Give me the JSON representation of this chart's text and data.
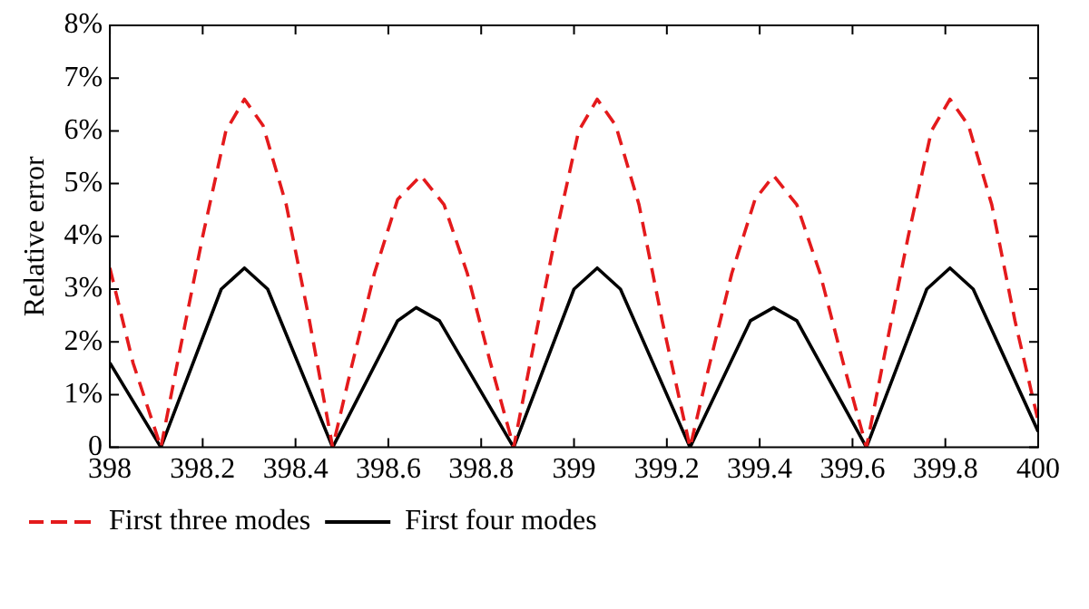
{
  "chart_data": {
    "type": "line",
    "ylabel": "Relative error",
    "xlim": [
      398,
      400
    ],
    "xticks": [
      398,
      398.2,
      398.4,
      398.6,
      398.8,
      399,
      399.2,
      399.4,
      399.6,
      399.8,
      400
    ],
    "ylim": [
      0,
      8
    ],
    "yticks": [
      0,
      {
        "value": 1,
        "label": "1%"
      },
      {
        "value": 2,
        "label": "2%"
      },
      {
        "value": 3,
        "label": "3%"
      },
      {
        "value": 4,
        "label": "4%"
      },
      {
        "value": 5,
        "label": "5%"
      },
      {
        "value": 6,
        "label": "6%"
      },
      {
        "value": 7,
        "label": "7%"
      },
      {
        "value": 8,
        "label": "8%"
      }
    ],
    "grid": false,
    "legend": "bottom",
    "marker": "none",
    "series": [
      {
        "name": "First three modes",
        "color": "#e41a1c",
        "line_style": "dashed",
        "x": [
          398,
          398.05,
          398.11,
          398.15,
          398.2,
          398.25,
          398.29,
          398.33,
          398.38,
          398.43,
          398.48,
          398.52,
          398.57,
          398.62,
          398.67,
          398.72,
          398.77,
          398.82,
          398.87,
          398.91,
          398.96,
          399.01,
          399.05,
          399.09,
          399.14,
          399.19,
          399.25,
          399.29,
          399.34,
          399.39,
          399.43,
          399.48,
          399.53,
          399.58,
          399.63,
          399.67,
          399.72,
          399.77,
          399.81,
          399.85,
          399.9,
          399.95,
          400
        ],
        "values": [
          3.4,
          1.6,
          0,
          1.8,
          4.0,
          6.0,
          6.6,
          6.1,
          4.6,
          2.4,
          0,
          1.5,
          3.3,
          4.7,
          5.15,
          4.6,
          3.3,
          1.6,
          0,
          1.8,
          4.0,
          6.0,
          6.6,
          6.1,
          4.6,
          2.4,
          0,
          1.5,
          3.3,
          4.7,
          5.15,
          4.6,
          3.3,
          1.6,
          0,
          1.8,
          4.0,
          6.0,
          6.6,
          6.1,
          4.6,
          2.4,
          0.5
        ]
      },
      {
        "name": "First four modes",
        "color": "#000000",
        "line_style": "solid",
        "x": [
          398,
          398.11,
          398.24,
          398.29,
          398.34,
          398.48,
          398.62,
          398.66,
          398.71,
          398.87,
          399.0,
          399.05,
          399.1,
          399.25,
          399.38,
          399.43,
          399.48,
          399.63,
          399.76,
          399.81,
          399.86,
          400
        ],
        "values": [
          1.6,
          0,
          3.0,
          3.4,
          3.0,
          0,
          2.4,
          2.65,
          2.4,
          0,
          3.0,
          3.4,
          3.0,
          0,
          2.4,
          2.65,
          2.4,
          0,
          3.0,
          3.4,
          3.0,
          0.3
        ]
      }
    ]
  }
}
